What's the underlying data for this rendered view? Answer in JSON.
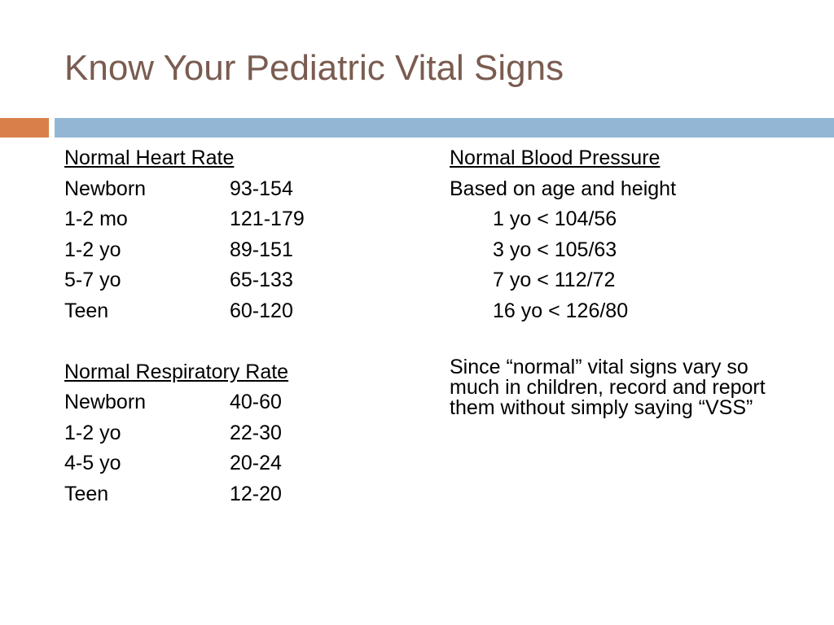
{
  "title": "Know Your Pediatric Vital Signs",
  "colors": {
    "title": "#7a5c50",
    "accent_orange": "#d9804a",
    "accent_blue": "#93b6d5"
  },
  "heart_rate": {
    "heading": "Normal Heart Rate",
    "rows": [
      {
        "label": "Newborn",
        "value": "93-154"
      },
      {
        "label": "1-2 mo",
        "value": "121-179"
      },
      {
        "label": "1-2 yo",
        "value": "89-151"
      },
      {
        "label": "5-7 yo",
        "value": "65-133"
      },
      {
        "label": "Teen",
        "value": "60-120"
      }
    ]
  },
  "respiratory_rate": {
    "heading": "Normal Respiratory Rate",
    "rows": [
      {
        "label": "Newborn",
        "value": "40-60"
      },
      {
        "label": "1-2 yo",
        "value": "22-30"
      },
      {
        "label": "4-5 yo",
        "value": "20-24"
      },
      {
        "label": "Teen",
        "value": "12-20"
      }
    ]
  },
  "blood_pressure": {
    "heading": "Normal Blood Pressure",
    "subheading": "Based on age and height",
    "items": [
      "1 yo < 104/56",
      "3 yo < 105/63",
      "7 yo < 112/72",
      "16 yo < 126/80"
    ]
  },
  "note": "Since “normal” vital signs vary so much in children, record and report them without simply saying “VSS”"
}
